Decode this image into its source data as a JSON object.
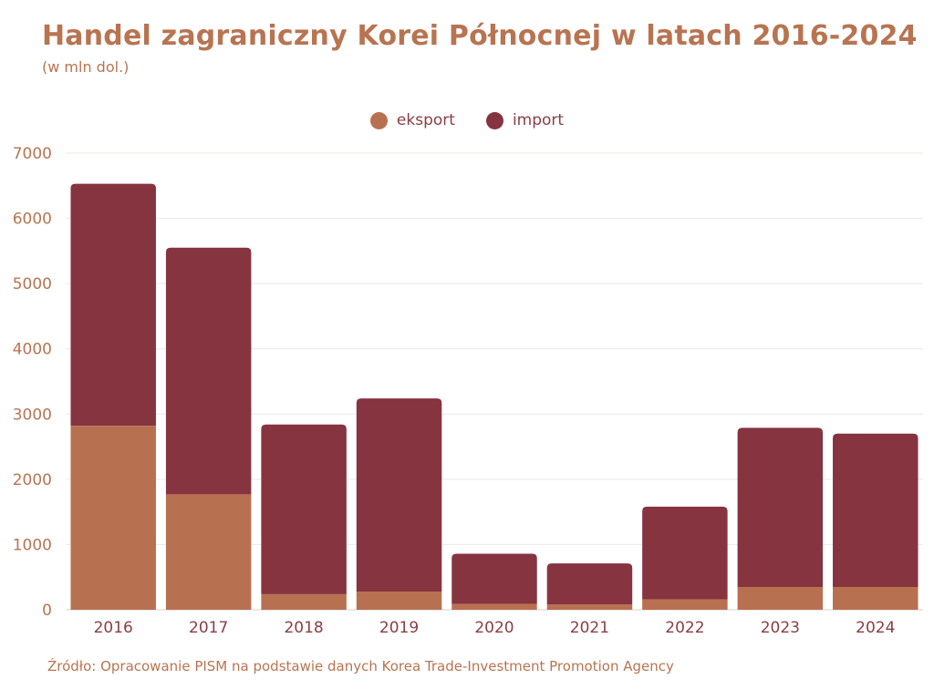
{
  "header": {
    "title": "Handel zagraniczny Korei Północnej w latach 2016-2024",
    "subtitle": "(w mln dol.)"
  },
  "legend": {
    "items": [
      {
        "label": "eksport",
        "color": "#b87150"
      },
      {
        "label": "import",
        "color": "#863440"
      }
    ]
  },
  "footer": {
    "source": "Źródło: Opracowanie PISM na podstawie danych Korea Trade-Investment Promotion Agency"
  },
  "chart_data": {
    "type": "bar",
    "stacked": true,
    "title": "Handel zagraniczny Korei Północnej w latach 2016-2024",
    "subtitle": "(w mln dol.)",
    "xlabel": "",
    "ylabel": "",
    "ylim": [
      0,
      7000
    ],
    "yticks": [
      0,
      1000,
      2000,
      3000,
      4000,
      5000,
      6000,
      7000
    ],
    "grid": true,
    "legend_position": "top-center",
    "categories": [
      "2016",
      "2017",
      "2018",
      "2019",
      "2020",
      "2021",
      "2022",
      "2023",
      "2024"
    ],
    "series": [
      {
        "name": "eksport",
        "color": "#b87150",
        "values": [
          2820,
          1770,
          240,
          280,
          90,
          80,
          160,
          350,
          350
        ]
      },
      {
        "name": "import",
        "color": "#863440",
        "values": [
          3710,
          3780,
          2600,
          2960,
          770,
          630,
          1420,
          2440,
          2350
        ]
      }
    ]
  }
}
